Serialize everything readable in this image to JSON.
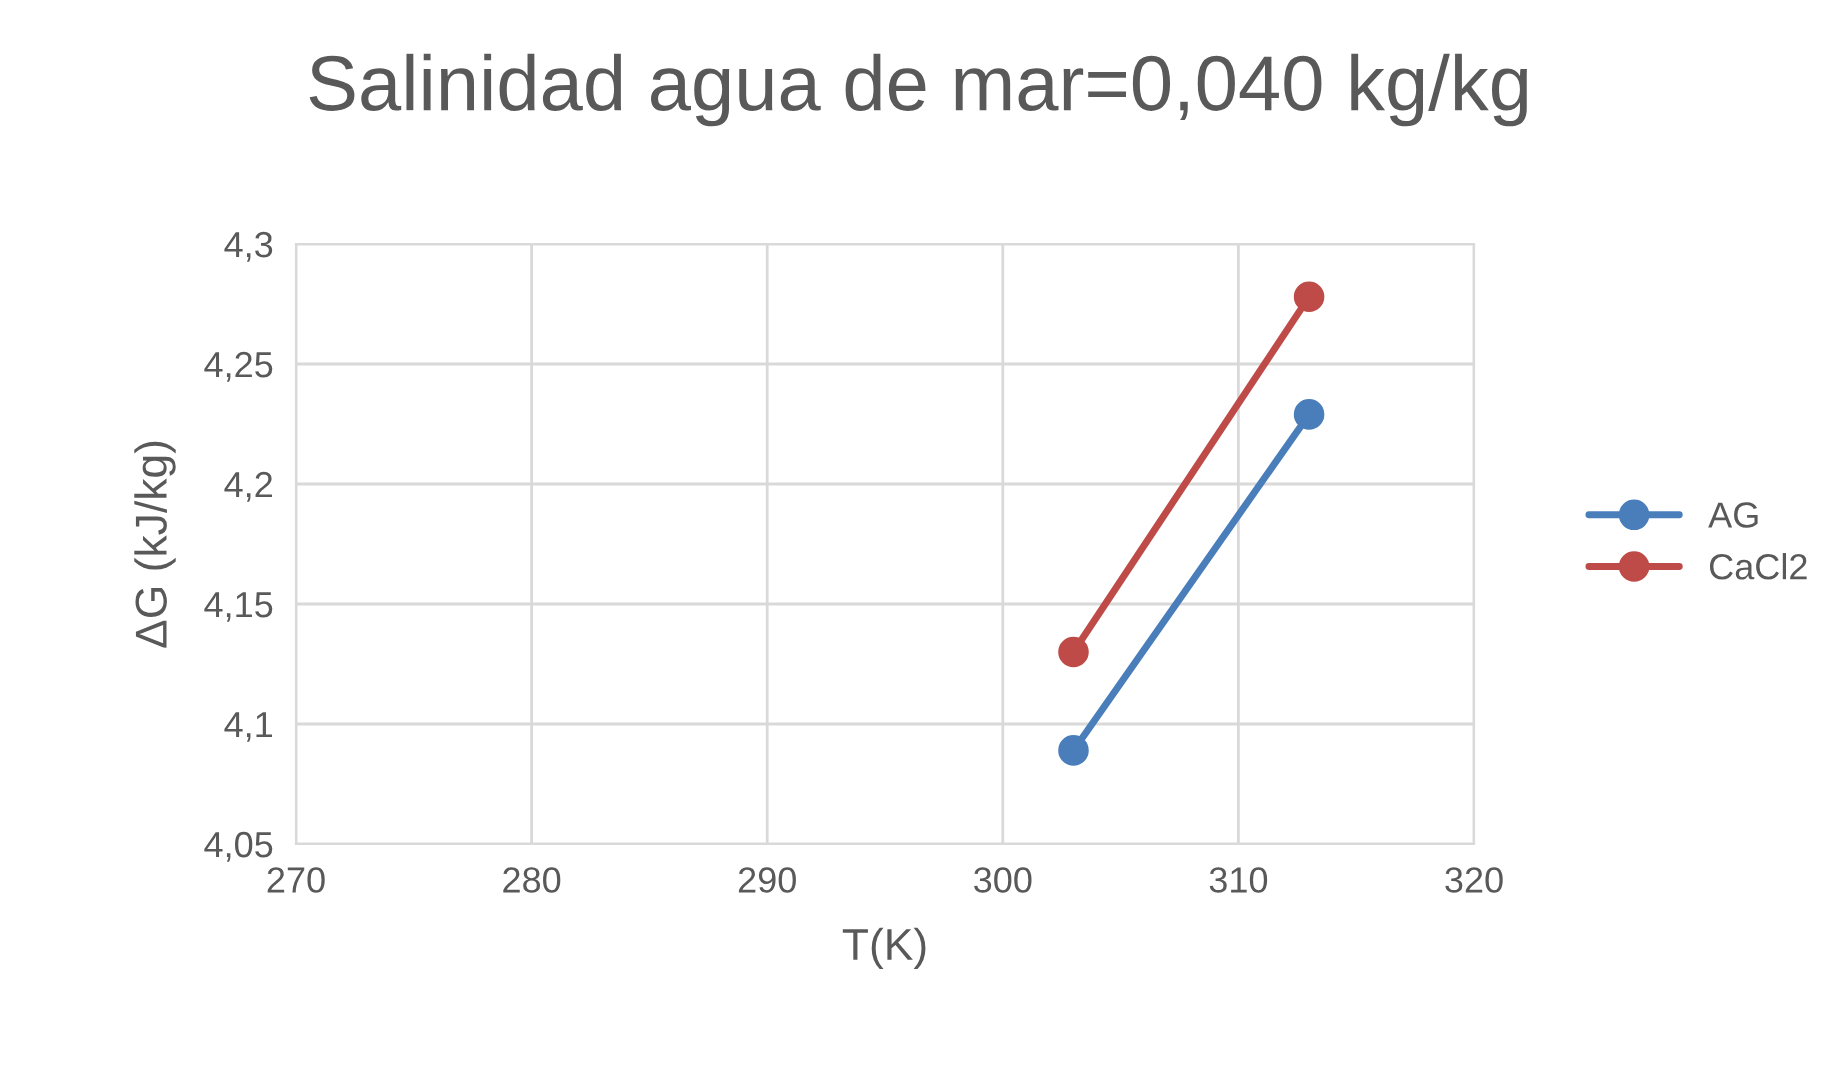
{
  "chart_data": {
    "type": "line",
    "title": "Salinidad agua de mar=0,040 kg/kg",
    "xlabel": "T(K)",
    "ylabel": "ΔG (kJ/kg)",
    "x": [
      303,
      313
    ],
    "series": [
      {
        "name": "AG",
        "color": "#4a7ebb",
        "values": [
          4.089,
          4.229
        ]
      },
      {
        "name": "CaCl2",
        "color": "#be4b48",
        "values": [
          4.13,
          4.278
        ]
      }
    ],
    "xlim": [
      270,
      320
    ],
    "xticks": [
      270,
      280,
      290,
      300,
      310,
      320
    ],
    "ylim": [
      4.05,
      4.3
    ],
    "yticks": [
      {
        "value": 4.05,
        "label": "4,05"
      },
      {
        "value": 4.1,
        "label": "4,1"
      },
      {
        "value": 4.15,
        "label": "4,15"
      },
      {
        "value": 4.2,
        "label": "4,2"
      },
      {
        "value": 4.25,
        "label": "4,25"
      },
      {
        "value": 4.3,
        "label": "4,3"
      }
    ],
    "grid": true,
    "legend": "right",
    "marker": "circle",
    "line_style": "solid"
  }
}
